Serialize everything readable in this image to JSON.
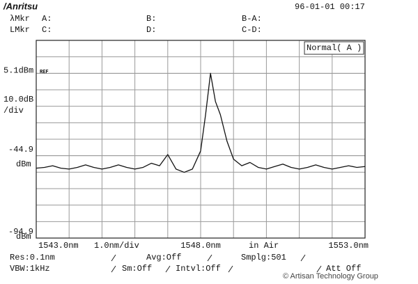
{
  "screen": {
    "logo": "/Anritsu",
    "timestamp": "96-01-01 00:17",
    "marker_rows": [
      [
        "λMkr",
        "A:",
        "B:",
        "B-A:"
      ],
      [
        "LMkr",
        "C:",
        "D:",
        "C-D:"
      ]
    ],
    "settings": {
      "resolution": "Res:0.1nm",
      "average": "Avg:Off",
      "sampling": "Smplg:501",
      "vbw": "VBW:1kHz",
      "smoothing": "Sm:Off",
      "interval": "Intvl:Off",
      "attenuator": "Att Off"
    }
  },
  "chart_data": {
    "type": "line",
    "mode": "Normal( A )",
    "ref": "REF",
    "y_scale": "10.0dB",
    "y_scale_unit": "/div",
    "y_unit": "dBm",
    "x_scale": "1.0nm/div",
    "medium": "in Air",
    "xlim": [
      1543,
      1553
    ],
    "ylim": [
      -94.9,
      25.1
    ],
    "xticks": [
      {
        "value": 1543,
        "label": "1543.0nm"
      },
      {
        "value": 1548,
        "label": "1548.0nm"
      },
      {
        "value": 1553,
        "label": "1553.0nm"
      }
    ],
    "yticks": [
      {
        "value": 5.1,
        "label": "5.1dBm"
      },
      {
        "value": -44.9,
        "label": "-44.9"
      },
      {
        "value": -94.9,
        "label": "-94.9"
      }
    ],
    "grid": true,
    "color": "#111111",
    "x": [
      1543.0,
      1543.25,
      1543.5,
      1543.75,
      1544.0,
      1544.25,
      1544.5,
      1544.75,
      1545.0,
      1545.25,
      1545.5,
      1545.75,
      1546.0,
      1546.25,
      1546.5,
      1546.75,
      1547.0,
      1547.25,
      1547.5,
      1547.75,
      1548.0,
      1548.15,
      1548.3,
      1548.45,
      1548.6,
      1548.8,
      1549.0,
      1549.25,
      1549.5,
      1549.75,
      1550.0,
      1550.25,
      1550.5,
      1550.75,
      1551.0,
      1551.25,
      1551.5,
      1551.75,
      1552.0,
      1552.25,
      1552.5,
      1552.75,
      1553.0
    ],
    "values": [
      -52.5,
      -52.0,
      -51.0,
      -52.5,
      -53.0,
      -52.0,
      -50.5,
      -52.0,
      -53.0,
      -52.0,
      -50.5,
      -52.0,
      -53.0,
      -52.0,
      -49.5,
      -51.0,
      -44.2,
      -53.0,
      -55.0,
      -53.0,
      -42.0,
      -20.0,
      5.1,
      -12.0,
      -20.0,
      -36.0,
      -47.0,
      -51.0,
      -49.0,
      -52.0,
      -53.0,
      -51.5,
      -50.0,
      -52.0,
      -53.0,
      -52.0,
      -50.5,
      -52.0,
      -53.0,
      -52.0,
      -51.0,
      -52.0,
      -51.5
    ]
  },
  "watermark": "© Artisan Technology Group"
}
